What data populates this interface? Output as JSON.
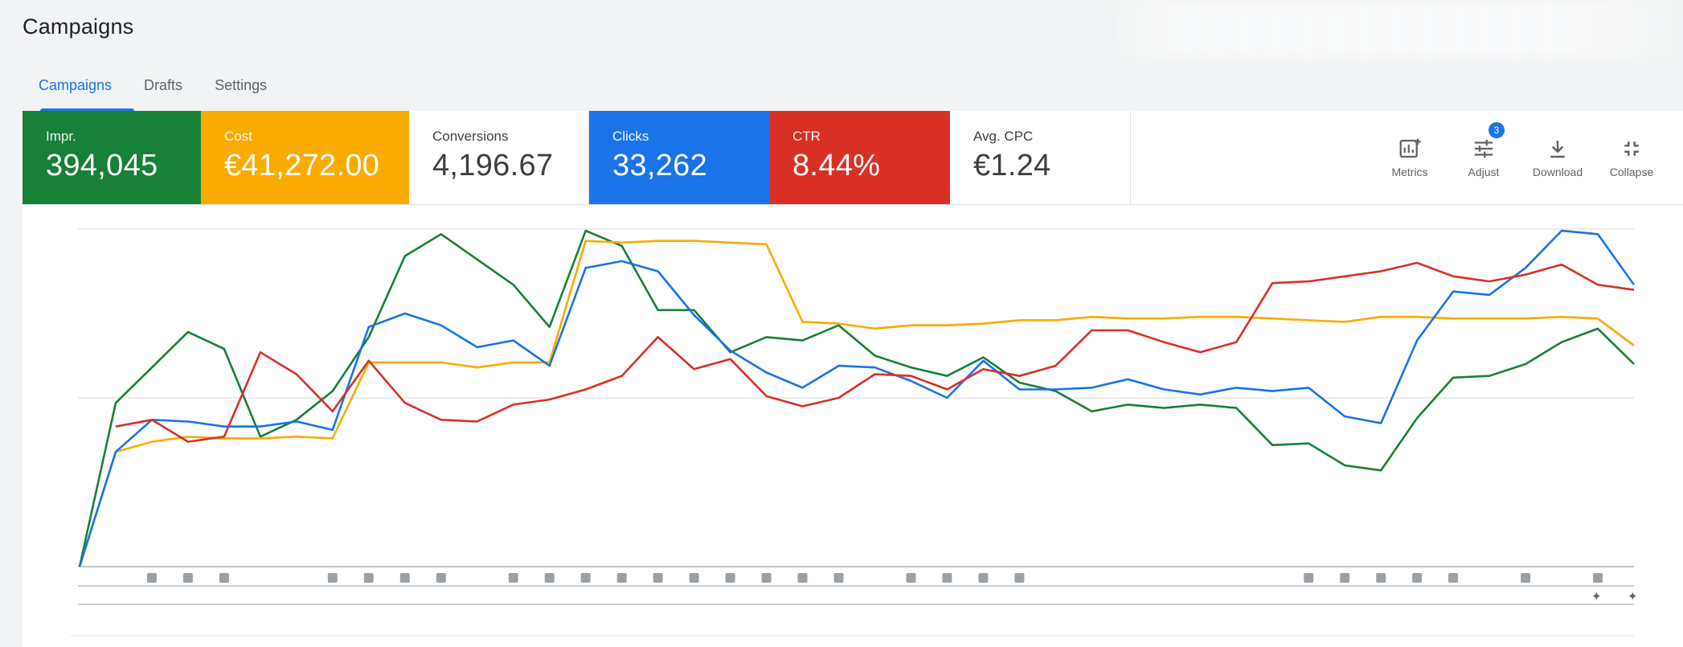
{
  "page": {
    "title": "Campaigns"
  },
  "tabs": [
    {
      "label": "Campaigns",
      "active": true
    },
    {
      "label": "Drafts",
      "active": false
    },
    {
      "label": "Settings",
      "active": false
    }
  ],
  "scorecards": [
    {
      "label": "Impr.",
      "value": "394,045",
      "color": "#188038",
      "filled": true
    },
    {
      "label": "Cost",
      "value": "€41,272.00",
      "color": "#f9ab00",
      "filled": true
    },
    {
      "label": "Conversions",
      "value": "4,196.67",
      "color": "#ffffff",
      "filled": false
    },
    {
      "label": "Clicks",
      "value": "33,262",
      "color": "#1a73e8",
      "filled": true
    },
    {
      "label": "CTR",
      "value": "8.44%",
      "color": "#d93025",
      "filled": true
    },
    {
      "label": "Avg. CPC",
      "value": "€1.24",
      "color": "#ffffff",
      "filled": false
    }
  ],
  "toolbar": {
    "metrics_label": "Metrics",
    "adjust_label": "Adjust",
    "adjust_badge": "3",
    "download_label": "Download",
    "collapse_label": "Collapse"
  },
  "chart_data": {
    "type": "line",
    "x": [
      0,
      1,
      2,
      3,
      4,
      5,
      6,
      7,
      8,
      9,
      10,
      11,
      12,
      13,
      14,
      15,
      16,
      17,
      18,
      19,
      20,
      21,
      22,
      23,
      24,
      25,
      26,
      27,
      28,
      29,
      30,
      31,
      32,
      33,
      34,
      35,
      36,
      37,
      38,
      39,
      40,
      41,
      42,
      43
    ],
    "ylim": [
      0,
      1
    ],
    "grid": true,
    "legend": "none",
    "series": [
      {
        "color": "#188038",
        "values": [
          0,
          0.485,
          0.59,
          0.695,
          0.645,
          0.385,
          0.435,
          0.52,
          0.68,
          0.92,
          0.985,
          0.91,
          0.835,
          0.71,
          0.995,
          0.95,
          0.76,
          0.76,
          0.635,
          0.68,
          0.67,
          0.715,
          0.625,
          0.59,
          0.565,
          0.62,
          0.545,
          0.52,
          0.46,
          0.48,
          0.47,
          0.48,
          0.47,
          0.36,
          0.365,
          0.3,
          0.285,
          0.44,
          0.56,
          0.565,
          0.6,
          0.665,
          0.705,
          0.6
        ]
      },
      {
        "color": "#f9ab00",
        "values": [
          0,
          0.34,
          0.37,
          0.385,
          0.38,
          0.38,
          0.385,
          0.38,
          0.605,
          0.605,
          0.605,
          0.59,
          0.605,
          0.605,
          0.965,
          0.96,
          0.965,
          0.965,
          0.96,
          0.955,
          0.725,
          0.72,
          0.705,
          0.715,
          0.715,
          0.72,
          0.73,
          0.73,
          0.74,
          0.735,
          0.735,
          0.74,
          0.74,
          0.735,
          0.73,
          0.725,
          0.74,
          0.74,
          0.735,
          0.735,
          0.735,
          0.74,
          0.735,
          0.655
        ]
      },
      {
        "color": "#1a73e8",
        "values": [
          0,
          0.34,
          0.435,
          0.43,
          0.415,
          0.415,
          0.43,
          0.405,
          0.71,
          0.75,
          0.715,
          0.65,
          0.67,
          0.595,
          0.885,
          0.905,
          0.875,
          0.745,
          0.64,
          0.575,
          0.53,
          0.595,
          0.59,
          0.55,
          0.5,
          0.61,
          0.525,
          0.525,
          0.53,
          0.555,
          0.525,
          0.51,
          0.53,
          0.52,
          0.53,
          0.445,
          0.425,
          0.67,
          0.815,
          0.805,
          0.885,
          0.995,
          0.985,
          0.835
        ]
      },
      {
        "color": "#d93025",
        "values": null,
        "values_partial": [
          0.415,
          0.435,
          0.37,
          0.385,
          0.635,
          0.57,
          0.46,
          0.61,
          0.485,
          0.435,
          0.43,
          0.48,
          0.495,
          0.525,
          0.565,
          0.68,
          0.585,
          0.615,
          0.505,
          0.475,
          0.5,
          0.57,
          0.565,
          0.525,
          0.585,
          0.565,
          0.595,
          0.7,
          0.7,
          0.665,
          0.635,
          0.665,
          0.84,
          0.845,
          0.86,
          0.875,
          0.9,
          0.86,
          0.845,
          0.865,
          0.895,
          0.835,
          0.82
        ],
        "x_start": 1
      }
    ]
  },
  "timeline_markers": {
    "positions": [
      2,
      3,
      4,
      7,
      8,
      9,
      10,
      12,
      13,
      14,
      15,
      16,
      17,
      18,
      19,
      20,
      21,
      23,
      24,
      25,
      26,
      34,
      35,
      36,
      37,
      38,
      40,
      42
    ]
  }
}
